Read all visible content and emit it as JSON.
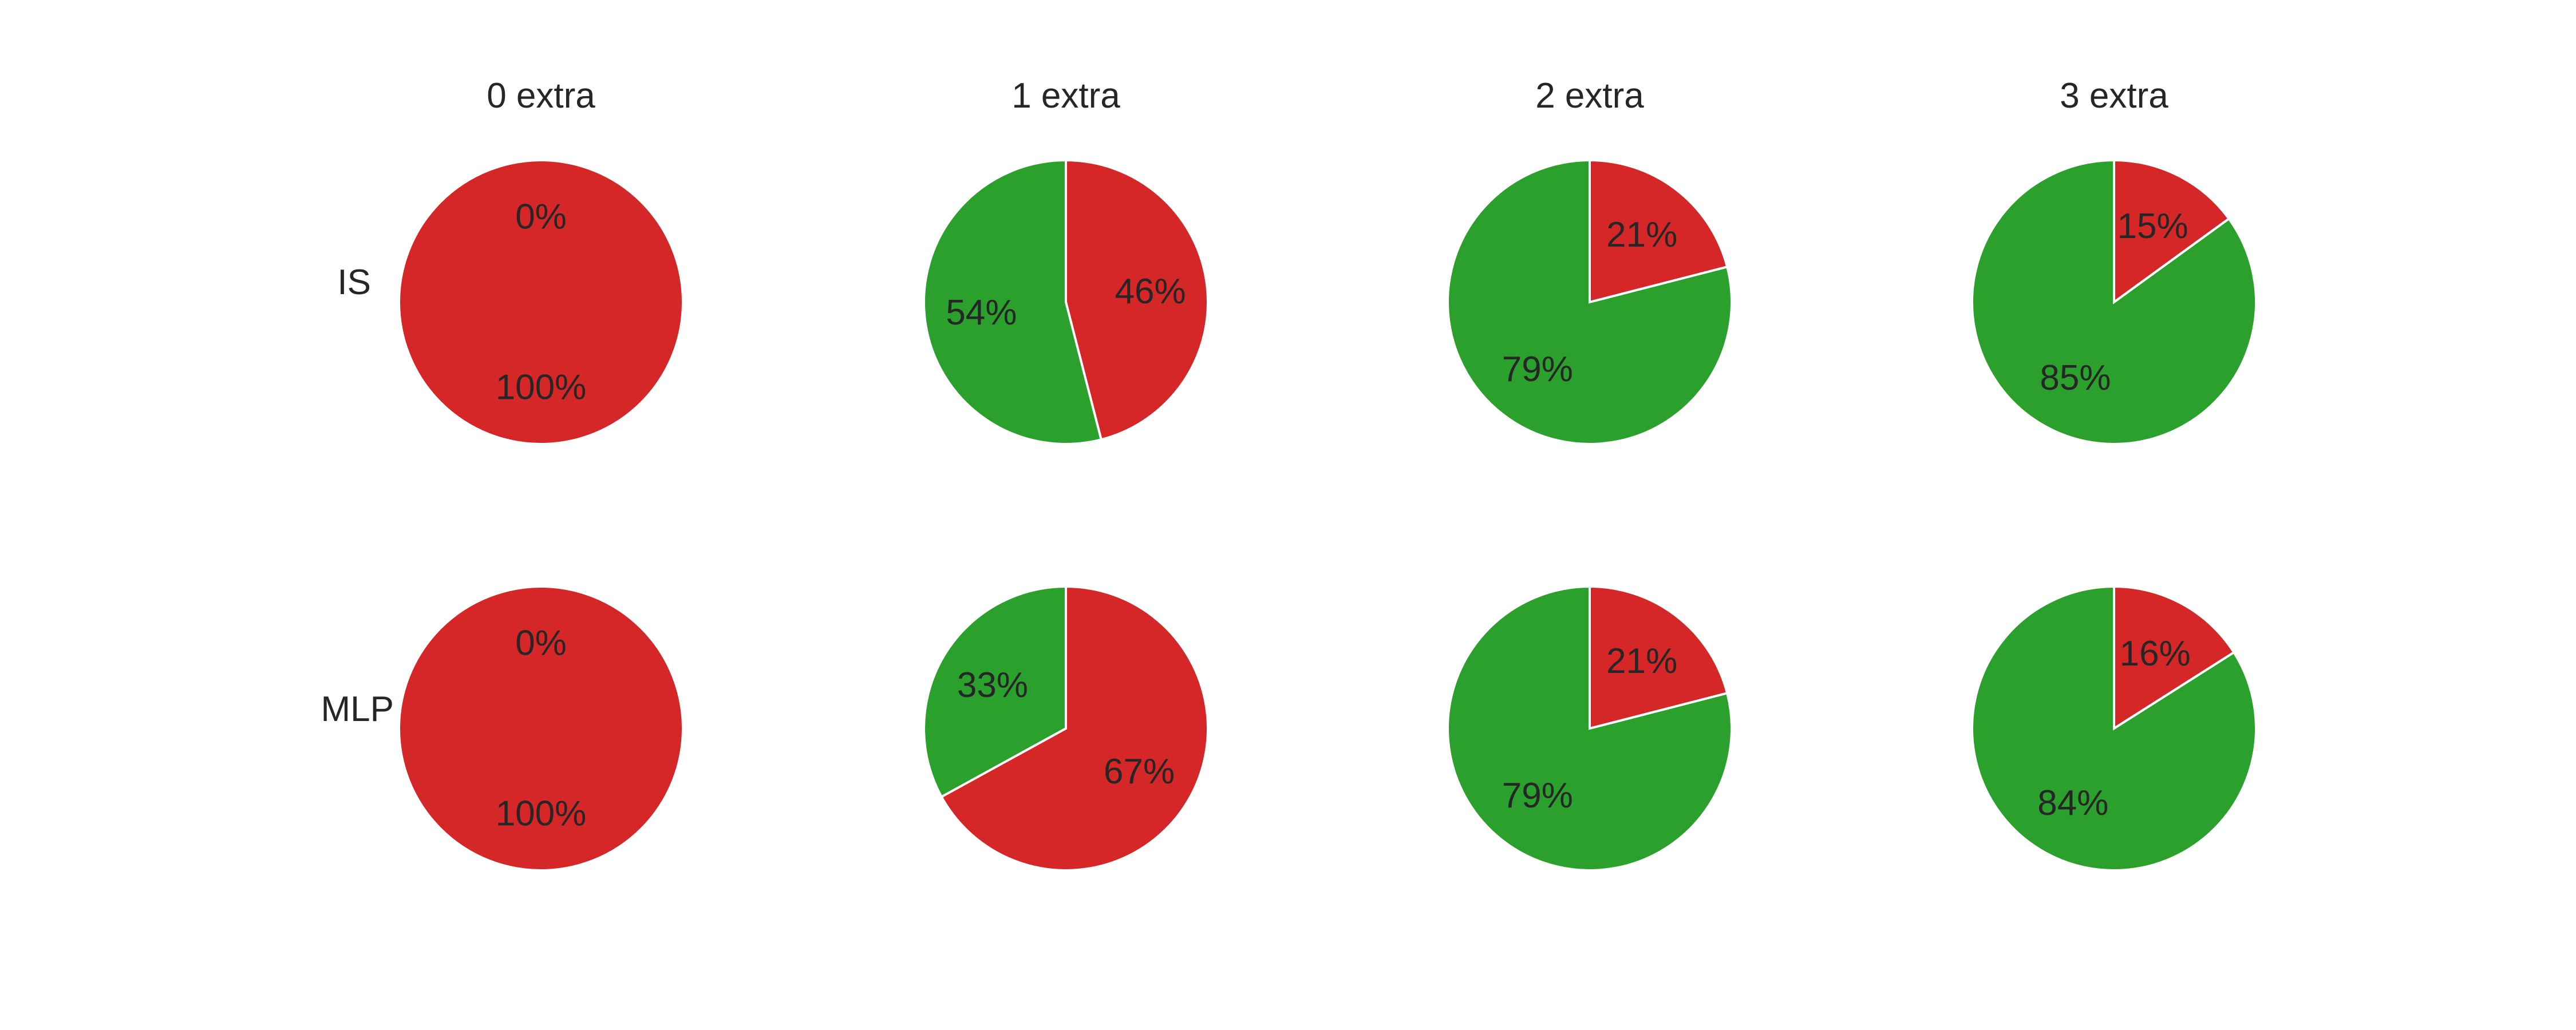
{
  "colors": {
    "fail": "#d62728",
    "success": "#2ca02c"
  },
  "chart_data": {
    "type": "pie",
    "start_angle": "top",
    "direction": "clockwise",
    "columns": [
      "0 extra",
      "1 extra",
      "2 extra",
      "3 extra"
    ],
    "rows": [
      "IS",
      "MLP"
    ],
    "pies": [
      {
        "row": "IS",
        "column": "0 extra",
        "slices": [
          {
            "color": "fail",
            "value": 100,
            "label": "100%"
          },
          {
            "color": "success",
            "value": 0,
            "label": "0%"
          }
        ]
      },
      {
        "row": "IS",
        "column": "1 extra",
        "slices": [
          {
            "color": "fail",
            "value": 46,
            "label": "46%"
          },
          {
            "color": "success",
            "value": 54,
            "label": "54%"
          }
        ]
      },
      {
        "row": "IS",
        "column": "2 extra",
        "slices": [
          {
            "color": "fail",
            "value": 21,
            "label": "21%"
          },
          {
            "color": "success",
            "value": 79,
            "label": "79%"
          }
        ]
      },
      {
        "row": "IS",
        "column": "3 extra",
        "slices": [
          {
            "color": "fail",
            "value": 15,
            "label": "15%"
          },
          {
            "color": "success",
            "value": 85,
            "label": "85%"
          }
        ]
      },
      {
        "row": "MLP",
        "column": "0 extra",
        "slices": [
          {
            "color": "fail",
            "value": 100,
            "label": "100%"
          },
          {
            "color": "success",
            "value": 0,
            "label": "0%"
          }
        ]
      },
      {
        "row": "MLP",
        "column": "1 extra",
        "slices": [
          {
            "color": "fail",
            "value": 67,
            "label": "67%"
          },
          {
            "color": "success",
            "value": 33,
            "label": "33%"
          }
        ]
      },
      {
        "row": "MLP",
        "column": "2 extra",
        "slices": [
          {
            "color": "fail",
            "value": 21,
            "label": "21%"
          },
          {
            "color": "success",
            "value": 79,
            "label": "79%"
          }
        ]
      },
      {
        "row": "MLP",
        "column": "3 extra",
        "slices": [
          {
            "color": "fail",
            "value": 16,
            "label": "16%"
          },
          {
            "color": "success",
            "value": 84,
            "label": "84%"
          }
        ]
      }
    ]
  }
}
